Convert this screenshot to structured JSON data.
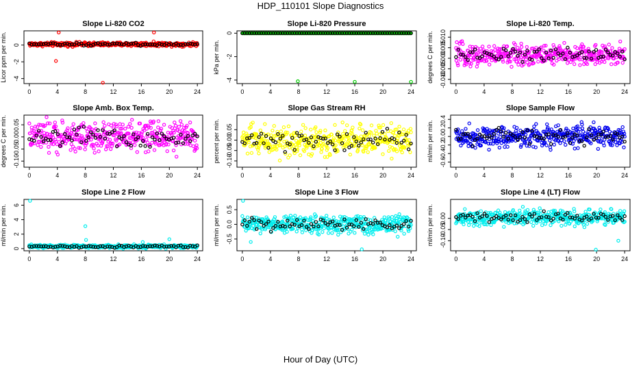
{
  "page": {
    "title": "HDP_110101  Slope Diagnostics",
    "xlabel": "Hour of Day (UTC)"
  },
  "chart_data": [
    {
      "type": "scatter",
      "title": "Slope Li-820 CO2",
      "ylabel": "Licor ppm per min.",
      "xlim": [
        0,
        24
      ],
      "xticks": [
        0,
        4,
        8,
        12,
        16,
        20,
        24
      ],
      "ylim": [
        -4.6,
        1.7
      ],
      "yticks": [
        -4,
        -2,
        0
      ],
      "ytick_labels": [
        "-4",
        "-2",
        "0"
      ],
      "color": "#ff0000",
      "band": {
        "center": 0.1,
        "spread": 0.35
      },
      "outliers": [
        {
          "x": 4.2,
          "y": 1.5
        },
        {
          "x": 3.8,
          "y": -1.9
        },
        {
          "x": 10.5,
          "y": -4.5
        },
        {
          "x": 17.8,
          "y": 1.5
        }
      ]
    },
    {
      "type": "scatter",
      "title": "Slope Li-820 Pressure",
      "ylabel": "kPa per min.",
      "xlim": [
        0,
        24
      ],
      "xticks": [
        0,
        4,
        8,
        12,
        16,
        20,
        24
      ],
      "ylim": [
        -4.3,
        0.2
      ],
      "yticks": [
        -4,
        -2,
        0
      ],
      "ytick_labels": [
        "-4",
        "-2",
        "0"
      ],
      "color": "#00cc00",
      "band": {
        "center": 0.0,
        "spread": 0.0
      },
      "outliers": [
        {
          "x": 7.9,
          "y": -4.1
        },
        {
          "x": 16.0,
          "y": -4.15
        },
        {
          "x": 24.0,
          "y": -4.15
        }
      ]
    },
    {
      "type": "scatter",
      "title": "Slope Li-820 Temp.",
      "ylabel": "degrees C per min.",
      "xlim": [
        0,
        24
      ],
      "xticks": [
        0,
        4,
        8,
        12,
        16,
        20,
        24
      ],
      "ylim": [
        -0.012,
        0.013
      ],
      "yticks": [
        -0.01,
        -0.005,
        0.0,
        0.005,
        0.01
      ],
      "ytick_labels": [
        "-0.010",
        "-0.005",
        "0.000",
        "0.005",
        "0.010"
      ],
      "color": "#ff00ff",
      "band": {
        "center": 0.0015,
        "spread": 0.0075
      },
      "outliers": []
    },
    {
      "type": "scatter",
      "title": "Slope Amb. Box Temp.",
      "ylabel": "degrees C per min.",
      "xlim": [
        0,
        24
      ],
      "xticks": [
        0,
        4,
        8,
        12,
        16,
        20,
        24
      ],
      "ylim": [
        -0.125,
        0.09
      ],
      "yticks": [
        -0.1,
        -0.05,
        0.0,
        0.05
      ],
      "ytick_labels": [
        "-0.10",
        "-0.05",
        "0.00",
        "0.05"
      ],
      "color": "#ff00ff",
      "band": {
        "center": 0.0,
        "spread": 0.09
      },
      "outliers": []
    },
    {
      "type": "scatter",
      "title": "Slope Gas Stream RH",
      "ylabel": "percent per min.",
      "xlim": [
        0,
        24
      ],
      "xticks": [
        0,
        4,
        8,
        12,
        16,
        20,
        24
      ],
      "ylim": [
        -0.13,
        0.12
      ],
      "yticks": [
        -0.1,
        -0.05,
        0.0,
        0.05
      ],
      "ytick_labels": [
        "-0.10",
        "-0.05",
        "0.00",
        "0.05"
      ],
      "color": "#ffff00",
      "band": {
        "center": 0.0,
        "spread": 0.11
      },
      "outliers": []
    },
    {
      "type": "scatter",
      "title": "Slope Sample Flow",
      "ylabel": "ml/min per min.",
      "xlim": [
        0,
        24
      ],
      "xticks": [
        0,
        4,
        8,
        12,
        16,
        20,
        24
      ],
      "ylim": [
        -0.72,
        0.5
      ],
      "yticks": [
        -0.6,
        -0.4,
        -0.2,
        0.0,
        0.2,
        0.4
      ],
      "ytick_labels": [
        "-0.6",
        "-0.4",
        "-0.2",
        "0.0",
        "0.2",
        "0.4"
      ],
      "color": "#0000ee",
      "band": {
        "center": 0.0,
        "spread": 0.38
      },
      "outliers": []
    },
    {
      "type": "scatter",
      "title": "Slope Line 2 Flow",
      "ylabel": "ml/min per min.",
      "xlim": [
        0,
        24
      ],
      "xticks": [
        0,
        4,
        8,
        12,
        16,
        20,
        24
      ],
      "ylim": [
        -0.3,
        6.8
      ],
      "yticks": [
        0,
        2,
        4,
        6
      ],
      "ytick_labels": [
        "0",
        "2",
        "4",
        "6"
      ],
      "color": "#00eeee",
      "band": {
        "center": 0.3,
        "spread": 0.35
      },
      "outliers": [
        {
          "x": 0.1,
          "y": 6.6
        },
        {
          "x": 8.0,
          "y": 3.1
        },
        {
          "x": 8.1,
          "y": 1.2
        },
        {
          "x": 20.0,
          "y": 1.3
        },
        {
          "x": 16.2,
          "y": 0.9
        }
      ]
    },
    {
      "type": "scatter",
      "title": "Slope Line 3 Flow",
      "ylabel": "ml/min per min.",
      "xlim": [
        0,
        24
      ],
      "xticks": [
        0,
        4,
        8,
        12,
        16,
        20,
        24
      ],
      "ylim": [
        -0.9,
        0.85
      ],
      "yticks": [
        -0.5,
        0.0,
        0.5
      ],
      "ytick_labels": [
        "-0.5",
        "0.0",
        "0.5"
      ],
      "color": "#00eeee",
      "band": {
        "center": 0.0,
        "spread": 0.45
      },
      "outliers": [
        {
          "x": 0.1,
          "y": 0.8
        },
        {
          "x": 17.0,
          "y": -0.85
        },
        {
          "x": 1.2,
          "y": -0.6
        }
      ]
    },
    {
      "type": "scatter",
      "title": "Slope Line 4 (LT) Flow",
      "ylabel": "ml/min per min.",
      "xlim": [
        0,
        24
      ],
      "xticks": [
        0,
        4,
        8,
        12,
        16,
        20,
        24
      ],
      "ylim": [
        -0.145,
        0.085
      ],
      "yticks": [
        -0.1,
        -0.05,
        0.0
      ],
      "ytick_labels": [
        "-0.10",
        "-0.05",
        "0.00"
      ],
      "color": "#00eeee",
      "band": {
        "center": 0.005,
        "spread": 0.05
      },
      "outliers": [
        {
          "x": 19.9,
          "y": -0.14
        },
        {
          "x": 23.1,
          "y": -0.1
        }
      ]
    }
  ]
}
